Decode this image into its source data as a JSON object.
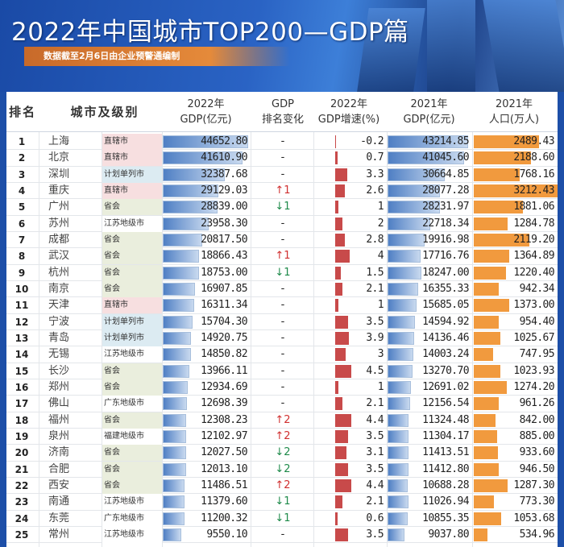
{
  "header": {
    "title": "2022年中国城市TOP200—GDP篇",
    "subtitle": "数据截至2月6日由企业预警通编制"
  },
  "colors": {
    "level_直辖市": "#f7dfe0",
    "level_计划单列市": "#dcebf2",
    "level_省会": "#eaeedd",
    "level_other": "#ffffff",
    "gdp_bar": "#4f7fc4",
    "growth_bar": "#c84a4a",
    "pop_bar": "#f19a3e",
    "up": "#d03030",
    "down": "#1e8a4a"
  },
  "columns": [
    "排名",
    "城市及级别",
    "2022年\nGDP(亿元)",
    "GDP\n排名变化",
    "2022年\nGDP增速(%)",
    "2021年\nGDP(亿元)",
    "2021年\n人口(万人)"
  ],
  "rows": [
    {
      "rank": "1",
      "city": "上海",
      "level": "直辖市",
      "gdp2022": "44652.80",
      "change": "-",
      "growth": "-0.2",
      "gdp2021": "43214.85",
      "pop": "2489.43"
    },
    {
      "rank": "2",
      "city": "北京",
      "level": "直辖市",
      "gdp2022": "41610.90",
      "change": "-",
      "growth": "0.7",
      "gdp2021": "41045.60",
      "pop": "2188.60"
    },
    {
      "rank": "3",
      "city": "深圳",
      "level": "计划单列市",
      "gdp2022": "32387.68",
      "change": "-",
      "growth": "3.3",
      "gdp2021": "30664.85",
      "pop": "1768.16"
    },
    {
      "rank": "4",
      "city": "重庆",
      "level": "直辖市",
      "gdp2022": "29129.03",
      "change": "↑1",
      "growth": "2.6",
      "gdp2021": "28077.28",
      "pop": "3212.43"
    },
    {
      "rank": "5",
      "city": "广州",
      "level": "省会",
      "gdp2022": "28839.00",
      "change": "↓1",
      "growth": "1",
      "gdp2021": "28231.97",
      "pop": "1881.06"
    },
    {
      "rank": "6",
      "city": "苏州",
      "level": "江苏地级市",
      "gdp2022": "23958.30",
      "change": "-",
      "growth": "2",
      "gdp2021": "22718.34",
      "pop": "1284.78"
    },
    {
      "rank": "7",
      "city": "成都",
      "level": "省会",
      "gdp2022": "20817.50",
      "change": "-",
      "growth": "2.8",
      "gdp2021": "19916.98",
      "pop": "2119.20"
    },
    {
      "rank": "8",
      "city": "武汉",
      "level": "省会",
      "gdp2022": "18866.43",
      "change": "↑1",
      "growth": "4",
      "gdp2021": "17716.76",
      "pop": "1364.89"
    },
    {
      "rank": "9",
      "city": "杭州",
      "level": "省会",
      "gdp2022": "18753.00",
      "change": "↓1",
      "growth": "1.5",
      "gdp2021": "18247.00",
      "pop": "1220.40"
    },
    {
      "rank": "10",
      "city": "南京",
      "level": "省会",
      "gdp2022": "16907.85",
      "change": "-",
      "growth": "2.1",
      "gdp2021": "16355.33",
      "pop": "942.34"
    },
    {
      "rank": "11",
      "city": "天津",
      "level": "直辖市",
      "gdp2022": "16311.34",
      "change": "-",
      "growth": "1",
      "gdp2021": "15685.05",
      "pop": "1373.00"
    },
    {
      "rank": "12",
      "city": "宁波",
      "level": "计划单列市",
      "gdp2022": "15704.30",
      "change": "-",
      "growth": "3.5",
      "gdp2021": "14594.92",
      "pop": "954.40"
    },
    {
      "rank": "13",
      "city": "青岛",
      "level": "计划单列市",
      "gdp2022": "14920.75",
      "change": "-",
      "growth": "3.9",
      "gdp2021": "14136.46",
      "pop": "1025.67"
    },
    {
      "rank": "14",
      "city": "无锡",
      "level": "江苏地级市",
      "gdp2022": "14850.82",
      "change": "-",
      "growth": "3",
      "gdp2021": "14003.24",
      "pop": "747.95"
    },
    {
      "rank": "15",
      "city": "长沙",
      "level": "省会",
      "gdp2022": "13966.11",
      "change": "-",
      "growth": "4.5",
      "gdp2021": "13270.70",
      "pop": "1023.93"
    },
    {
      "rank": "16",
      "city": "郑州",
      "level": "省会",
      "gdp2022": "12934.69",
      "change": "-",
      "growth": "1",
      "gdp2021": "12691.02",
      "pop": "1274.20"
    },
    {
      "rank": "17",
      "city": "佛山",
      "level": "广东地级市",
      "gdp2022": "12698.39",
      "change": "-",
      "growth": "2.1",
      "gdp2021": "12156.54",
      "pop": "961.26"
    },
    {
      "rank": "18",
      "city": "福州",
      "level": "省会",
      "gdp2022": "12308.23",
      "change": "↑2",
      "growth": "4.4",
      "gdp2021": "11324.48",
      "pop": "842.00"
    },
    {
      "rank": "19",
      "city": "泉州",
      "level": "福建地级市",
      "gdp2022": "12102.97",
      "change": "↑2",
      "growth": "3.5",
      "gdp2021": "11304.17",
      "pop": "885.00"
    },
    {
      "rank": "20",
      "city": "济南",
      "level": "省会",
      "gdp2022": "12027.50",
      "change": "↓2",
      "growth": "3.1",
      "gdp2021": "11413.51",
      "pop": "933.60"
    },
    {
      "rank": "21",
      "city": "合肥",
      "level": "省会",
      "gdp2022": "12013.10",
      "change": "↓2",
      "growth": "3.5",
      "gdp2021": "11412.80",
      "pop": "946.50"
    },
    {
      "rank": "22",
      "city": "西安",
      "level": "省会",
      "gdp2022": "11486.51",
      "change": "↑2",
      "growth": "4.4",
      "gdp2021": "10688.28",
      "pop": "1287.30"
    },
    {
      "rank": "23",
      "city": "南通",
      "level": "江苏地级市",
      "gdp2022": "11379.60",
      "change": "↓1",
      "growth": "2.1",
      "gdp2021": "11026.94",
      "pop": "773.30"
    },
    {
      "rank": "24",
      "city": "东莞",
      "level": "广东地级市",
      "gdp2022": "11200.32",
      "change": "↓1",
      "growth": "0.6",
      "gdp2021": "10855.35",
      "pop": "1053.68"
    },
    {
      "rank": "25",
      "city": "常州",
      "level": "江苏地级市",
      "gdp2022": "9550.10",
      "change": "-",
      "growth": "3.5",
      "gdp2021": "9037.80",
      "pop": "534.96"
    }
  ]
}
